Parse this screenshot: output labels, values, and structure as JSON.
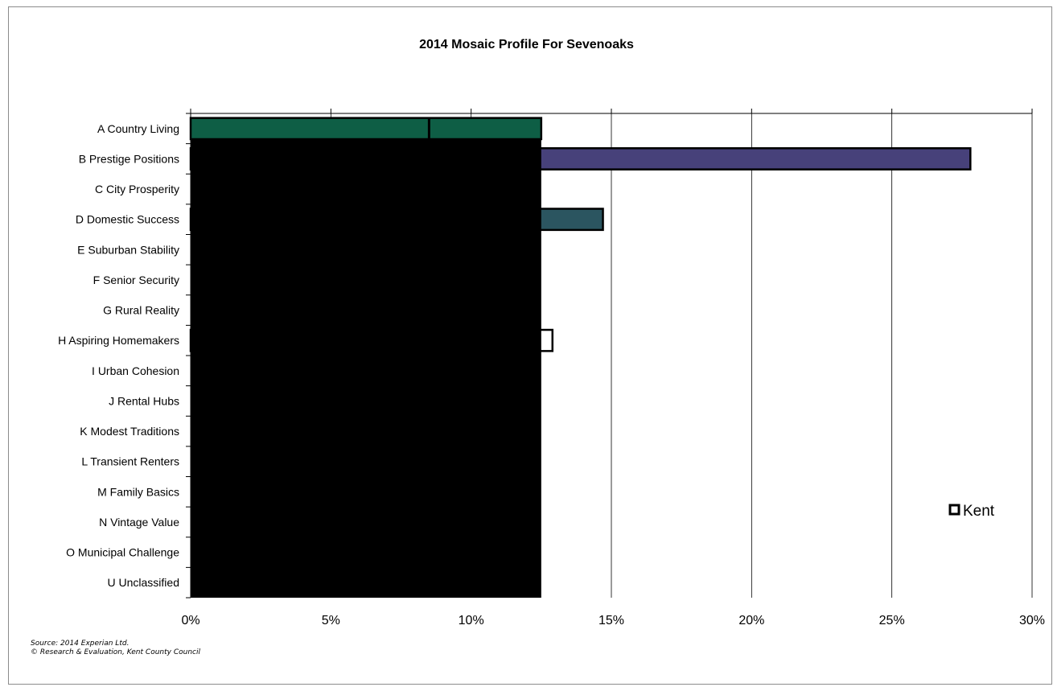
{
  "chart_data": {
    "type": "bar",
    "orientation": "horizontal",
    "title": "2014 Mosaic Profile For Sevenoaks",
    "xlabel": "",
    "ylabel": "",
    "xlim": [
      0,
      30
    ],
    "x_ticks": [
      "0%",
      "5%",
      "10%",
      "15%",
      "20%",
      "25%",
      "30%"
    ],
    "categories": [
      "A Country Living",
      "B Prestige Positions",
      "C City Prosperity",
      "D Domestic Success",
      "E Suburban Stability",
      "F Senior Security",
      "G Rural Reality",
      "H Aspiring Homemakers",
      "I Urban Cohesion",
      "J Rental Hubs",
      "K Modest Traditions",
      "L Transient Renters",
      "M Family Basics",
      "N Vintage Value",
      "O Municipal Challenge",
      "U Unclassified"
    ],
    "series": [
      {
        "values": [
          12.5,
          27.8,
          0,
          14.7,
          0,
          0,
          0,
          12.9,
          0,
          0,
          0,
          0,
          0,
          0,
          0,
          0
        ],
        "colors": [
          "#0e5e45",
          "#47417a",
          "#000000",
          "#2b5560",
          "#000000",
          "#000000",
          "#000000",
          "#ffffff",
          "#000000",
          "#000000",
          "#000000",
          "#000000",
          "#000000",
          "#000000",
          "#000000",
          "#000000"
        ]
      },
      {
        "name": "Kent",
        "values": [
          8.5,
          null,
          null,
          null,
          null,
          null,
          null,
          null,
          null,
          null,
          null,
          null,
          null,
          null,
          null,
          null
        ],
        "color": "#ffffff"
      }
    ],
    "overlay_box": {
      "x_end": 12.5,
      "color": "#000000"
    },
    "legend": {
      "position": "right",
      "entries": [
        "Kent"
      ]
    },
    "grid": true
  },
  "source_lines": [
    "Source: 2014 Experian Ltd.",
    "© Research & Evaluation, Kent County Council"
  ]
}
